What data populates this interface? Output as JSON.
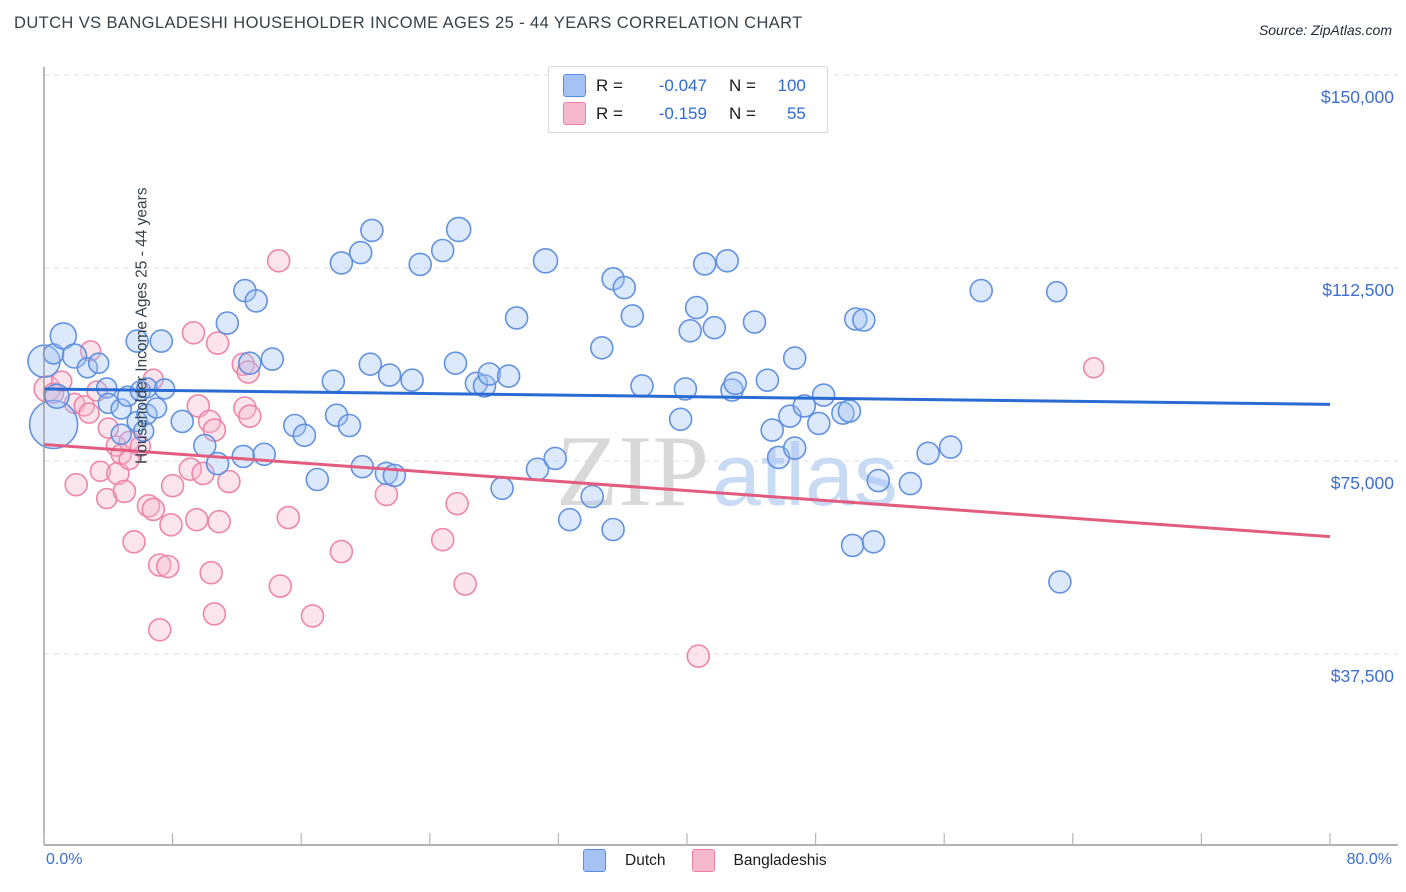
{
  "header": {
    "title": "DUTCH VS BANGLADESHI HOUSEHOLDER INCOME AGES 25 - 44 YEARS CORRELATION CHART",
    "source": "Source: ZipAtlas.com"
  },
  "watermark": {
    "zip": "ZIP",
    "atlas": "atlas",
    "zip_color": "#d9d9d9",
    "atlas_color": "#c9daf5"
  },
  "legend_box": {
    "rows": [
      {
        "r_label": "R =",
        "r_value": "-0.047",
        "n_label": "N =",
        "n_value": "100"
      },
      {
        "r_label": "R =",
        "r_value": "-0.159",
        "n_label": "N =",
        "n_value": "55"
      }
    ]
  },
  "axes": {
    "y_label": "Householder Income Ages 25 - 44 years",
    "x_min_label": "0.0%",
    "x_max_label": "80.0%"
  },
  "bottom_legend": [
    {
      "label": "Dutch"
    },
    {
      "label": "Bangladeshis"
    }
  ],
  "chart_data": {
    "type": "scatter",
    "title": "Dutch vs Bangladeshi Householder Income Ages 25 - 44 years",
    "xlabel_range_pct": [
      0,
      80
    ],
    "ylabel": "Householder Income Ages 25 - 44 years",
    "ylim": [
      0,
      155000
    ],
    "grid": "dashed horizontal",
    "legend_position": "top-center and bottom-center",
    "y_ticks": [
      {
        "label": "$150,000",
        "value": 150000
      },
      {
        "label": "$112,500",
        "value": 112500
      },
      {
        "label": "$75,000",
        "value": 75000
      },
      {
        "label": "$37,500",
        "value": 37500
      }
    ],
    "x_tick_count": 11,
    "series": [
      {
        "name": "Dutch",
        "R": -0.047,
        "N": 100,
        "fill": "#a4c2f4",
        "stroke": "#5b8cde",
        "line": "#2a6bd3",
        "trend": [
          [
            0,
            89000
          ],
          [
            80,
            86000
          ]
        ],
        "points": [
          [
            0.0,
            94400,
            16
          ],
          [
            0.6,
            95800,
            10
          ],
          [
            0.6,
            82100,
            24
          ],
          [
            0.8,
            87600,
            12
          ],
          [
            1.2,
            99300,
            13
          ],
          [
            1.9,
            95400,
            12
          ],
          [
            2.7,
            93100,
            10
          ],
          [
            3.4,
            94000,
            10
          ],
          [
            3.9,
            89200,
            10
          ],
          [
            4.0,
            86200,
            10
          ],
          [
            4.8,
            85100,
            10
          ],
          [
            4.8,
            80200,
            10
          ],
          [
            5.2,
            87600,
            10
          ],
          [
            5.8,
            82700,
            10
          ],
          [
            5.8,
            98300,
            11
          ],
          [
            6.0,
            88600,
            10
          ],
          [
            6.2,
            80800,
            10
          ],
          [
            6.4,
            89200,
            10
          ],
          [
            6.4,
            84100,
            10
          ],
          [
            7.0,
            85300,
            10
          ],
          [
            7.3,
            98300,
            11
          ],
          [
            7.5,
            89000,
            10
          ],
          [
            8.6,
            82700,
            11
          ],
          [
            10.0,
            78000,
            11
          ],
          [
            10.8,
            74500,
            11
          ],
          [
            11.4,
            101800,
            11
          ],
          [
            12.4,
            75900,
            11
          ],
          [
            12.5,
            108100,
            11
          ],
          [
            12.8,
            94000,
            11
          ],
          [
            13.2,
            106100,
            11
          ],
          [
            13.7,
            76300,
            11
          ],
          [
            14.2,
            94800,
            11
          ],
          [
            15.6,
            81900,
            11
          ],
          [
            16.2,
            80000,
            11
          ],
          [
            17.0,
            71400,
            11
          ],
          [
            18.0,
            90500,
            11
          ],
          [
            18.2,
            83900,
            11
          ],
          [
            18.5,
            113500,
            11
          ],
          [
            19.0,
            81900,
            11
          ],
          [
            19.7,
            115500,
            11
          ],
          [
            19.8,
            73900,
            11
          ],
          [
            20.3,
            93800,
            11
          ],
          [
            20.4,
            119800,
            11
          ],
          [
            21.3,
            72600,
            11
          ],
          [
            21.5,
            91700,
            11
          ],
          [
            21.8,
            72200,
            11
          ],
          [
            22.9,
            90700,
            11
          ],
          [
            23.4,
            113200,
            11
          ],
          [
            24.8,
            115900,
            11
          ],
          [
            25.6,
            94000,
            11
          ],
          [
            25.8,
            120000,
            12
          ],
          [
            26.9,
            90100,
            11
          ],
          [
            27.4,
            89600,
            11
          ],
          [
            27.7,
            91900,
            11
          ],
          [
            28.5,
            69700,
            11
          ],
          [
            28.9,
            91500,
            11
          ],
          [
            29.4,
            102800,
            11
          ],
          [
            30.7,
            73400,
            11
          ],
          [
            31.2,
            113900,
            12
          ],
          [
            31.8,
            75500,
            11
          ],
          [
            32.7,
            63600,
            11
          ],
          [
            34.1,
            68100,
            11
          ],
          [
            34.7,
            97000,
            11
          ],
          [
            35.4,
            110400,
            11
          ],
          [
            35.4,
            61700,
            11
          ],
          [
            36.1,
            108700,
            11
          ],
          [
            36.6,
            103200,
            11
          ],
          [
            37.2,
            89600,
            11
          ],
          [
            39.6,
            83100,
            11
          ],
          [
            39.9,
            89000,
            11
          ],
          [
            40.2,
            100300,
            11
          ],
          [
            40.6,
            104800,
            11
          ],
          [
            41.1,
            113300,
            11
          ],
          [
            41.7,
            100900,
            11
          ],
          [
            42.5,
            113900,
            11
          ],
          [
            42.8,
            88800,
            11
          ],
          [
            43.0,
            90100,
            11
          ],
          [
            44.2,
            102000,
            11
          ],
          [
            45.0,
            90700,
            11
          ],
          [
            45.3,
            81000,
            11
          ],
          [
            45.7,
            75700,
            11
          ],
          [
            46.4,
            83700,
            11
          ],
          [
            46.7,
            95000,
            11
          ],
          [
            46.7,
            77500,
            11
          ],
          [
            47.3,
            85700,
            11
          ],
          [
            48.2,
            82300,
            11
          ],
          [
            48.5,
            87800,
            11
          ],
          [
            49.7,
            84300,
            11
          ],
          [
            50.1,
            84700,
            11
          ],
          [
            50.3,
            58600,
            11
          ],
          [
            50.5,
            102600,
            11
          ],
          [
            51.0,
            102400,
            11
          ],
          [
            51.6,
            59300,
            11
          ],
          [
            51.9,
            71200,
            11
          ],
          [
            53.9,
            70600,
            11
          ],
          [
            55.0,
            76500,
            11
          ],
          [
            56.4,
            77700,
            11
          ],
          [
            58.3,
            108100,
            11
          ],
          [
            63.0,
            107900,
            10
          ],
          [
            63.2,
            51500,
            11
          ]
        ]
      },
      {
        "name": "Bangladeshis",
        "R": -0.159,
        "N": 55,
        "fill": "#f5b8cd",
        "stroke": "#ed7fa6",
        "line": "#e25c7f",
        "trend": [
          [
            0,
            78200
          ],
          [
            80,
            60300
          ]
        ],
        "points": [
          [
            0.2,
            89000,
            13
          ],
          [
            0.6,
            88200,
            10
          ],
          [
            1.1,
            90500,
            10
          ],
          [
            1.9,
            86200,
            10
          ],
          [
            2.0,
            70400,
            11
          ],
          [
            2.5,
            85700,
            10
          ],
          [
            2.8,
            84300,
            10
          ],
          [
            2.9,
            96400,
            10
          ],
          [
            3.3,
            88600,
            10
          ],
          [
            3.5,
            73000,
            10
          ],
          [
            3.9,
            67700,
            10
          ],
          [
            4.0,
            81400,
            10
          ],
          [
            4.5,
            77900,
            10
          ],
          [
            4.6,
            72600,
            11
          ],
          [
            4.8,
            76300,
            10
          ],
          [
            5.0,
            69100,
            11
          ],
          [
            5.3,
            78800,
            10
          ],
          [
            5.3,
            75300,
            10
          ],
          [
            5.6,
            59300,
            11
          ],
          [
            6.0,
            77900,
            10
          ],
          [
            6.5,
            66300,
            11
          ],
          [
            6.8,
            65600,
            11
          ],
          [
            6.8,
            90900,
            10
          ],
          [
            7.2,
            54800,
            11
          ],
          [
            7.2,
            42200,
            11
          ],
          [
            7.7,
            54500,
            11
          ],
          [
            7.9,
            62600,
            11
          ],
          [
            8.0,
            70200,
            11
          ],
          [
            9.1,
            73400,
            11
          ],
          [
            9.3,
            99900,
            11
          ],
          [
            9.5,
            63600,
            11
          ],
          [
            9.6,
            85700,
            11
          ],
          [
            9.9,
            72600,
            11
          ],
          [
            10.3,
            82700,
            11
          ],
          [
            10.4,
            53300,
            11
          ],
          [
            10.6,
            45300,
            11
          ],
          [
            10.6,
            81000,
            11
          ],
          [
            10.8,
            97900,
            11
          ],
          [
            10.9,
            63200,
            11
          ],
          [
            11.5,
            71000,
            11
          ],
          [
            12.4,
            93800,
            11
          ],
          [
            12.5,
            85300,
            11
          ],
          [
            12.7,
            92300,
            11
          ],
          [
            12.8,
            83700,
            11
          ],
          [
            14.6,
            113900,
            11
          ],
          [
            14.7,
            50700,
            11
          ],
          [
            15.2,
            64000,
            11
          ],
          [
            16.7,
            44900,
            11
          ],
          [
            18.5,
            57400,
            11
          ],
          [
            21.3,
            68500,
            11
          ],
          [
            24.8,
            59700,
            11
          ],
          [
            25.7,
            66700,
            11
          ],
          [
            26.2,
            51100,
            11
          ],
          [
            40.7,
            37100,
            11
          ],
          [
            65.3,
            93100,
            10
          ]
        ]
      }
    ]
  }
}
